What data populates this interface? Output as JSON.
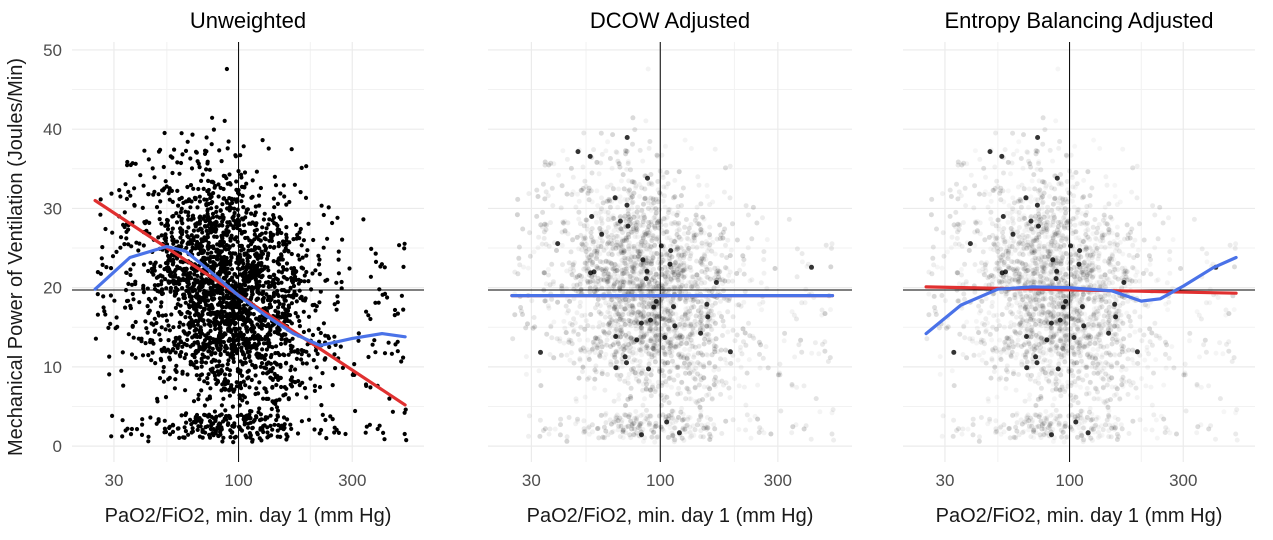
{
  "figure": {
    "ylabel": "Mechanical Power of Ventilation (Joules/Min)"
  },
  "chart_data": [
    {
      "type": "scatter",
      "title": "Unweighted",
      "xlabel": "PaO2/FiO2, min. day 1 (mm Hg)",
      "ylabel": "Mechanical Power of Ventilation (Joules/Min)",
      "x_scale": "log",
      "xlim": [
        20,
        600
      ],
      "ylim": [
        -2,
        51
      ],
      "x_ticks": [
        30,
        100,
        300
      ],
      "y_ticks": [
        0,
        10,
        20,
        30,
        40,
        50
      ],
      "reference_lines": {
        "vline_x": 100,
        "hline_y": 19.7
      },
      "grid": true,
      "points": {
        "style": "opaque",
        "color": "#000000",
        "opacity": 1.0
      },
      "series": [
        {
          "kind": "linear-fit",
          "color": "#e03030",
          "x": [
            25,
            500
          ],
          "y": [
            31.0,
            5.2
          ]
        },
        {
          "kind": "smooth-fit",
          "color": "#4a72e8",
          "x": [
            25,
            35,
            50,
            60,
            75,
            100,
            130,
            170,
            220,
            300,
            400,
            500
          ],
          "y": [
            19.8,
            23.8,
            25.2,
            24.6,
            22.2,
            19.0,
            16.5,
            14.2,
            12.7,
            13.6,
            14.2,
            13.8
          ]
        }
      ]
    },
    {
      "type": "scatter",
      "title": "DCOW Adjusted",
      "xlabel": "PaO2/FiO2, min. day 1 (mm Hg)",
      "x_scale": "log",
      "xlim": [
        20,
        600
      ],
      "ylim": [
        -2,
        51
      ],
      "x_ticks": [
        30,
        100,
        300
      ],
      "y_ticks": [
        0,
        10,
        20,
        30,
        40,
        50
      ],
      "reference_lines": {
        "vline_x": 100,
        "hline_y": 19.7
      },
      "grid": true,
      "points": {
        "style": "weighted-transparent",
        "color": "#000000",
        "opacity": 0.12
      },
      "series": [
        {
          "kind": "linear-fit",
          "color": "#e03030",
          "x": [
            25,
            500
          ],
          "y": [
            19.0,
            19.0
          ]
        },
        {
          "kind": "smooth-fit",
          "color": "#4a72e8",
          "x": [
            25,
            100,
            500
          ],
          "y": [
            19.0,
            19.0,
            19.0
          ]
        }
      ]
    },
    {
      "type": "scatter",
      "title": "Entropy Balancing Adjusted",
      "xlabel": "PaO2/FiO2, min. day 1 (mm Hg)",
      "x_scale": "log",
      "xlim": [
        20,
        600
      ],
      "ylim": [
        -2,
        51
      ],
      "x_ticks": [
        30,
        100,
        300
      ],
      "y_ticks": [
        0,
        10,
        20,
        30,
        40,
        50
      ],
      "reference_lines": {
        "vline_x": 100,
        "hline_y": 19.7
      },
      "grid": true,
      "points": {
        "style": "weighted-transparent",
        "color": "#000000",
        "opacity": 0.1
      },
      "series": [
        {
          "kind": "linear-fit",
          "color": "#e03030",
          "x": [
            25,
            500
          ],
          "y": [
            20.1,
            19.3
          ]
        },
        {
          "kind": "smooth-fit",
          "color": "#4a72e8",
          "x": [
            25,
            35,
            50,
            70,
            100,
            150,
            200,
            240,
            300,
            400,
            500
          ],
          "y": [
            14.2,
            17.8,
            19.8,
            20.1,
            20.0,
            19.6,
            18.3,
            18.6,
            20.2,
            22.5,
            23.8
          ]
        }
      ]
    }
  ]
}
